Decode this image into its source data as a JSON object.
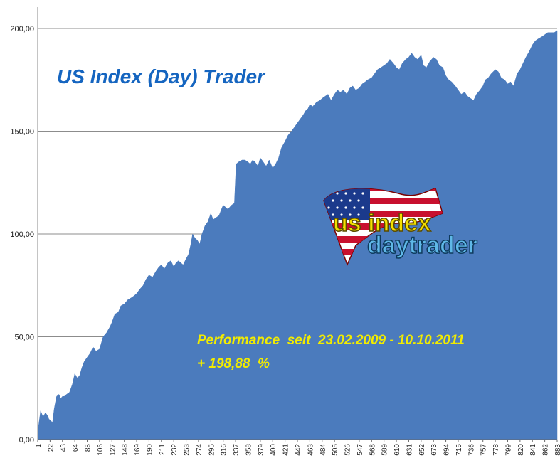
{
  "chart_data": {
    "type": "area",
    "title": "US Index (Day) Trader",
    "annotation_line1": "Performance  seit  23.02.2009 - 10.10.2011",
    "annotation_line2": "+ 198,88  %",
    "y_tick_labels": [
      "0,00",
      "50,00",
      "100,00",
      "150,00",
      "200,00"
    ],
    "ylim": [
      0,
      200
    ],
    "x_tick_labels": [
      "1",
      "22",
      "43",
      "64",
      "85",
      "106",
      "127",
      "148",
      "169",
      "190",
      "211",
      "232",
      "253",
      "274",
      "295",
      "316",
      "337",
      "358",
      "379",
      "400",
      "421",
      "442",
      "463",
      "484",
      "505",
      "526",
      "547",
      "568",
      "589",
      "610",
      "631",
      "652",
      "673",
      "694",
      "715",
      "736",
      "757",
      "778",
      "799",
      "820",
      "841",
      "862",
      "883"
    ],
    "xlim": [
      1,
      883
    ],
    "grid": "horizontal",
    "legend": "none",
    "series": [
      {
        "color": "#4b7bbd",
        "x": [
          1,
          3,
          6,
          10,
          14,
          17,
          20,
          24,
          26,
          29,
          33,
          37,
          40,
          43,
          46,
          50,
          55,
          60,
          64,
          68,
          72,
          76,
          80,
          85,
          90,
          95,
          100,
          106,
          112,
          118,
          124,
          127,
          132,
          138,
          142,
          148,
          154,
          160,
          165,
          169,
          174,
          180,
          185,
          190,
          196,
          202,
          207,
          211,
          216,
          222,
          227,
          232,
          236,
          240,
          244,
          248,
          253,
          257,
          261,
          264,
          268,
          272,
          276,
          280,
          285,
          290,
          295,
          299,
          304,
          309,
          313,
          316,
          320,
          324,
          330,
          335,
          338,
          342,
          348,
          353,
          358,
          362,
          366,
          370,
          375,
          379,
          384,
          389,
          394,
          400,
          405,
          410,
          415,
          421,
          426,
          432,
          437,
          442,
          447,
          452,
          456,
          460,
          463,
          468,
          474,
          480,
          484,
          489,
          494,
          499,
          505,
          510,
          515,
          520,
          526,
          531,
          536,
          541,
          547,
          552,
          557,
          561,
          568,
          573,
          578,
          584,
          589,
          594,
          599,
          605,
          610,
          615,
          620,
          626,
          631,
          636,
          641,
          646,
          652,
          656,
          661,
          667,
          673,
          678,
          683,
          689,
          694,
          699,
          704,
          710,
          715,
          720,
          726,
          731,
          736,
          741,
          746,
          752,
          757,
          761,
          766,
          771,
          778,
          783,
          788,
          794,
          799,
          804,
          809,
          815,
          820,
          825,
          830,
          836,
          841,
          846,
          851,
          857,
          862,
          867,
          872,
          878,
          883
        ],
        "y": [
          3,
          8,
          14,
          11,
          13,
          12,
          10,
          9,
          8,
          15,
          21,
          22,
          20,
          21,
          21,
          22,
          23,
          27,
          32,
          30,
          31,
          35,
          38,
          40,
          42,
          45,
          43,
          44,
          50,
          52,
          55,
          57,
          61,
          62,
          65,
          66,
          68,
          69,
          70,
          71,
          73,
          75,
          78,
          80,
          79,
          82,
          84,
          85,
          83,
          86,
          87,
          84,
          86,
          87,
          86,
          85,
          88,
          90,
          95,
          100,
          98,
          97,
          95,
          100,
          104,
          106,
          110,
          107,
          108,
          109,
          112,
          114,
          113,
          112,
          114,
          115,
          134,
          135,
          136,
          136,
          135,
          134,
          136,
          135,
          133,
          137,
          135,
          133,
          136,
          132,
          134,
          137,
          142,
          145,
          148,
          150,
          152,
          154,
          156,
          158,
          160,
          161,
          163,
          162,
          164,
          165,
          166,
          167,
          168,
          165,
          168,
          170,
          169,
          170,
          168,
          171,
          172,
          170,
          171,
          173,
          174,
          175,
          176,
          178,
          180,
          181,
          182,
          183,
          185,
          183,
          181,
          180,
          183,
          185,
          186,
          188,
          186,
          185,
          187,
          182,
          181,
          184,
          186,
          185,
          182,
          181,
          177,
          175,
          174,
          172,
          170,
          168,
          169,
          167,
          166,
          165,
          168,
          170,
          172,
          175,
          176,
          178,
          180,
          179,
          176,
          175,
          173,
          174,
          172,
          178,
          180,
          183,
          186,
          189,
          192,
          194,
          195,
          196,
          197,
          198,
          198,
          198,
          199
        ]
      }
    ]
  },
  "logo": {
    "line1": "us index",
    "line2": "daytrader"
  }
}
